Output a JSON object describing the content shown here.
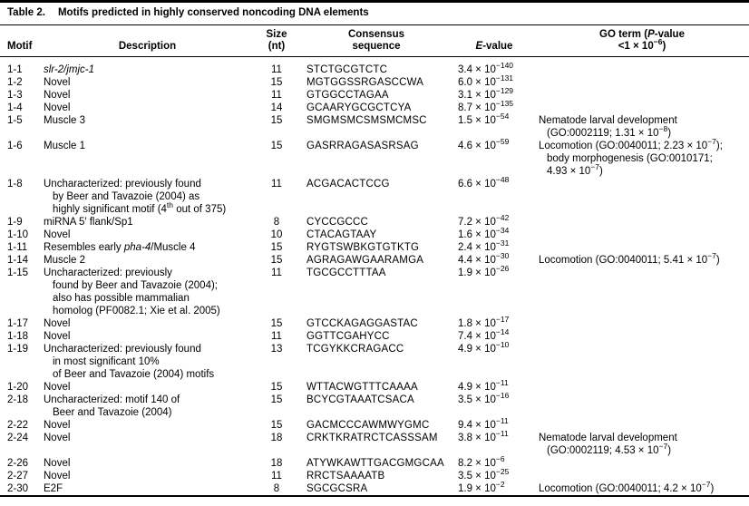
{
  "table": {
    "label": "Table 2.",
    "title": "Motifs predicted in highly conserved noncoding DNA elements",
    "columns": {
      "motif": "Motif",
      "description": "Description",
      "size": [
        "Size",
        "(nt)"
      ],
      "consensus": [
        "Consensus",
        "sequence"
      ],
      "evalue": "*E*-value",
      "go": [
        "GO term (*P*-value",
        "<1 × 10^−6^)"
      ]
    },
    "rows": [
      {
        "motif": "1-1",
        "desc": [
          "*slr-2/jmjc-1*"
        ],
        "size": "11",
        "consensus": "STCTGCGTCTC",
        "evalue": "3.4 × 10^−140^",
        "go": []
      },
      {
        "motif": "1-2",
        "desc": [
          "Novel"
        ],
        "size": "15",
        "consensus": "MGTGGSSRGASCCWA",
        "evalue": "6.0 × 10^−131^",
        "go": []
      },
      {
        "motif": "1-3",
        "desc": [
          "Novel"
        ],
        "size": "11",
        "consensus": "GTGGCCTAGAA",
        "evalue": "3.1 × 10^−129^",
        "go": []
      },
      {
        "motif": "1-4",
        "desc": [
          "Novel"
        ],
        "size": "14",
        "consensus": "GCAARYGCGCTCYA",
        "evalue": "8.7 × 10^−135^",
        "go": []
      },
      {
        "motif": "1-5",
        "desc": [
          "Muscle 3"
        ],
        "size": "15",
        "consensus": "SMGMSMCSMSMCMSC",
        "evalue": "1.5 × 10^−54^",
        "go": [
          "Nematode larval development",
          "(GO:0002119; 1.31 × 10^−8^)"
        ]
      },
      {
        "motif": "1-6",
        "desc": [
          "Muscle 1"
        ],
        "size": "15",
        "consensus": "GASRRAGASASRSAG",
        "evalue": "4.6 × 10^−59^",
        "go": [
          "Locomotion (GO:0040011; 2.23 × 10^−7^);",
          "body morphogenesis (GO:0010171;",
          "4.93 × 10^−7^)"
        ]
      },
      {
        "motif": "1-8",
        "desc": [
          "Uncharacterized: previously found",
          "by Beer and Tavazoie (2004) as",
          "highly significant motif (4^th^ out of 375)"
        ],
        "size": "11",
        "consensus": "ACGACACTCCG",
        "evalue": "6.6 × 10^−48^",
        "go": []
      },
      {
        "motif": "1-9",
        "desc": [
          "miRNA 5′ flank/Sp1"
        ],
        "size": "8",
        "consensus": "CYCCGCCC",
        "evalue": "7.2 × 10^−42^",
        "go": []
      },
      {
        "motif": "1-10",
        "desc": [
          "Novel"
        ],
        "size": "10",
        "consensus": "CTACAGTAAY",
        "evalue": "1.6 × 10^−34^",
        "go": []
      },
      {
        "motif": "1-11",
        "desc": [
          "Resembles early *pha-4*/Muscle 4"
        ],
        "size": "15",
        "consensus": "RYGTSWBKGTGTKTG",
        "evalue": "2.4 × 10^−31^",
        "go": []
      },
      {
        "motif": "1-14",
        "desc": [
          "Muscle 2"
        ],
        "size": "15",
        "consensus": "AGRAGAWGAARAMGA",
        "evalue": "4.4 × 10^−30^",
        "go": [
          "Locomotion (GO:0040011; 5.41 × 10^−7^)"
        ]
      },
      {
        "motif": "1-15",
        "desc": [
          "Uncharacterized: previously",
          "found by Beer and Tavazoie (2004);",
          "also has possible mammalian",
          "homolog (PF0082.1; Xie et al. 2005)"
        ],
        "size": "11",
        "consensus": "TGCGCCTTTAA",
        "evalue": "1.9 × 10^−26^",
        "go": []
      },
      {
        "motif": "1-17",
        "desc": [
          "Novel"
        ],
        "size": "15",
        "consensus": "GTCCKAGAGGASTAC",
        "evalue": "1.8 × 10^−17^",
        "go": []
      },
      {
        "motif": "1-18",
        "desc": [
          "Novel"
        ],
        "size": "11",
        "consensus": "GGTTCGAHYCC",
        "evalue": "7.4 × 10^−14^",
        "go": []
      },
      {
        "motif": "1-19",
        "desc": [
          "Uncharacterized: previously found",
          "in most significant 10%",
          "of Beer and Tavazoie (2004) motifs"
        ],
        "size": "13",
        "consensus": "TCGYKKCRAGACC",
        "evalue": "4.9 × 10^−10^",
        "go": []
      },
      {
        "motif": "1-20",
        "desc": [
          "Novel"
        ],
        "size": "15",
        "consensus": "WTTACWGTTTCAAAA",
        "evalue": "4.9 × 10^−11^",
        "go": []
      },
      {
        "motif": "2-18",
        "desc": [
          "Uncharacterized: motif 140 of",
          "Beer and Tavazoie (2004)"
        ],
        "size": "15",
        "consensus": "BCYCGTAAATCSACA",
        "evalue": "3.5 × 10^−16^",
        "go": []
      },
      {
        "motif": "2-22",
        "desc": [
          "Novel"
        ],
        "size": "15",
        "consensus": "GACMCCCAWMWYGMC",
        "evalue": "9.4 × 10^−11^",
        "go": []
      },
      {
        "motif": "2-24",
        "desc": [
          "Novel"
        ],
        "size": "18",
        "consensus": "CRKTKRATRCTCASSSAM",
        "evalue": "3.8 × 10^−11^",
        "go": [
          "Nematode larval development",
          "(GO:0002119; 4.53 × 10^−7^)"
        ]
      },
      {
        "motif": "2-26",
        "desc": [
          "Novel"
        ],
        "size": "18",
        "consensus": "ATYWKAWTTGACGMGCAA",
        "evalue": "8.2 × 10^−6^",
        "go": []
      },
      {
        "motif": "2-27",
        "desc": [
          "Novel"
        ],
        "size": "11",
        "consensus": "RRCTSAAAATB",
        "evalue": "3.5 × 10^−25^",
        "go": []
      },
      {
        "motif": "2-30",
        "desc": [
          "E2F"
        ],
        "size": "8",
        "consensus": "SGCGCSRA",
        "evalue": "1.9 × 10^−2^",
        "go": [
          "Locomotion (GO:0040011; 4.2 × 10^−7^)"
        ]
      }
    ]
  }
}
